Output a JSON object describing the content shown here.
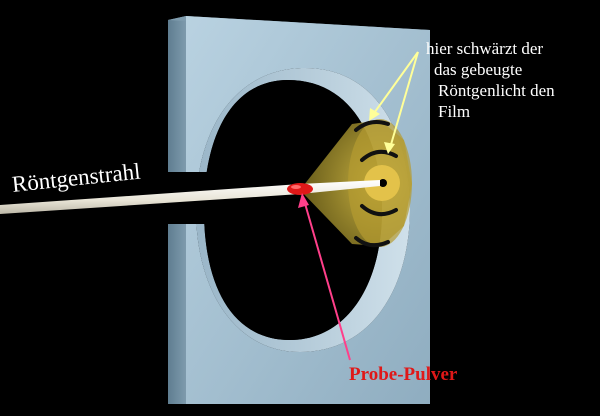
{
  "labels": {
    "beam": "Röntgenstrahl",
    "film_note": [
      "hier schwärzt der",
      "das gebeugte",
      "Röntgenlicht den",
      "Film"
    ],
    "sample": "Probe-Pulver"
  },
  "colors": {
    "background": "#000000",
    "camera_body": "#a5c1d2",
    "beam": "#f2efe6",
    "cone": "#c9b13a",
    "sample": "#e01818",
    "arrow_white": "#ffff99",
    "arrow_pink": "#ff3f8a",
    "label_red": "#e01818"
  }
}
